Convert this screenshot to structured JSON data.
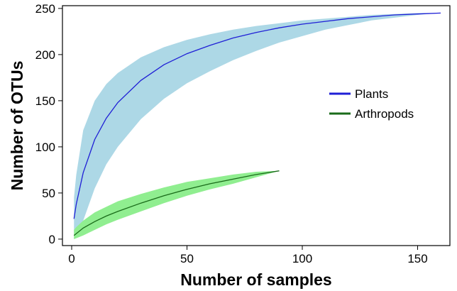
{
  "chart_data": {
    "type": "line",
    "title": "",
    "xlabel": "Number of samples",
    "ylabel": "Number of OTUs",
    "xlim": [
      -4,
      164
    ],
    "ylim": [
      -7,
      253
    ],
    "x_ticks": [
      0,
      50,
      100,
      150
    ],
    "y_ticks": [
      0,
      50,
      100,
      150,
      200,
      250
    ],
    "x_tick_labels": [
      "0",
      "50",
      "100",
      "150"
    ],
    "y_tick_labels": [
      "0",
      "50",
      "100",
      "150",
      "200",
      "250"
    ],
    "grid": false,
    "legend_position": "right",
    "series": [
      {
        "name": "Plants",
        "line_color": "#1f1fd6",
        "band_color": "#add8e6",
        "x": [
          1,
          2,
          5,
          10,
          15,
          20,
          30,
          40,
          50,
          60,
          70,
          80,
          90,
          100,
          110,
          120,
          130,
          140,
          150,
          160
        ],
        "y": [
          22,
          38,
          72,
          108,
          131,
          148,
          172,
          189,
          201,
          210,
          218,
          224,
          229,
          233,
          236,
          239,
          241,
          243,
          244,
          245
        ],
        "lower": [
          0,
          2,
          20,
          55,
          81,
          100,
          130,
          152,
          169,
          182,
          194,
          204,
          213,
          220,
          227,
          232,
          237,
          240,
          243,
          245
        ],
        "upper": [
          45,
          70,
          118,
          150,
          168,
          180,
          197,
          208,
          216,
          222,
          227,
          231,
          234,
          237,
          239,
          241,
          243,
          244,
          245,
          245
        ]
      },
      {
        "name": "Arthropods",
        "line_color": "#1a6b1a",
        "band_color": "#90ee90",
        "x": [
          1,
          2,
          5,
          10,
          15,
          20,
          30,
          40,
          50,
          60,
          70,
          80,
          90
        ],
        "y": [
          4,
          6,
          12,
          19,
          25,
          30,
          39,
          47,
          54,
          60,
          65,
          70,
          74
        ],
        "lower": [
          0,
          1,
          4,
          10,
          16,
          21,
          30,
          39,
          47,
          54,
          60,
          67,
          74
        ],
        "upper": [
          10,
          13,
          20,
          29,
          35,
          41,
          49,
          56,
          62,
          66,
          70,
          73,
          74
        ]
      }
    ]
  }
}
